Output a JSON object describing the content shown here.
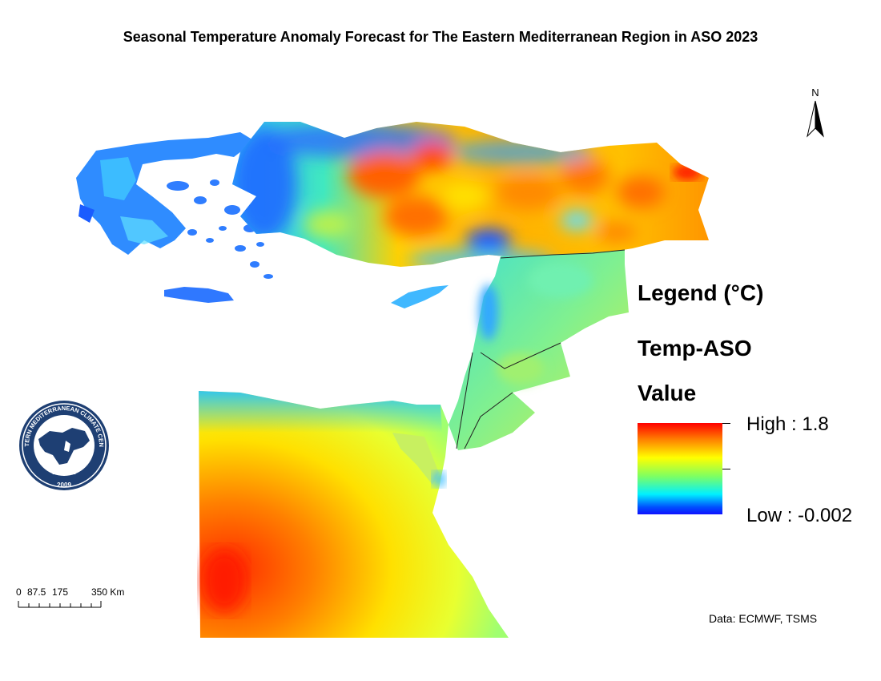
{
  "map": {
    "title": "Seasonal Temperature Anomaly Forecast for The Eastern Mediterranean Region in ASO 2023"
  },
  "north_arrow": {
    "label": "N"
  },
  "legend": {
    "title": "Legend (°C)",
    "layer": "Temp-ASO",
    "field": "Value",
    "high_label": "High : 1.8",
    "low_label": "Low : -0.002",
    "high": 1.8,
    "low": -0.002,
    "colors": [
      "#ff0000",
      "#ff8000",
      "#ffff00",
      "#80ff60",
      "#00f0ff",
      "#0050ff",
      "#1010ff"
    ]
  },
  "scale_bar": {
    "ticks": [
      "0",
      "87.5",
      "175",
      "350 Km"
    ],
    "units": "Km"
  },
  "credit": "Data: ECMWF, TSMS",
  "logo": {
    "name": "EASTERN MEDITERRANEAN CLIMATE CENTRE",
    "year": "2009",
    "color": "#1e3f73"
  }
}
